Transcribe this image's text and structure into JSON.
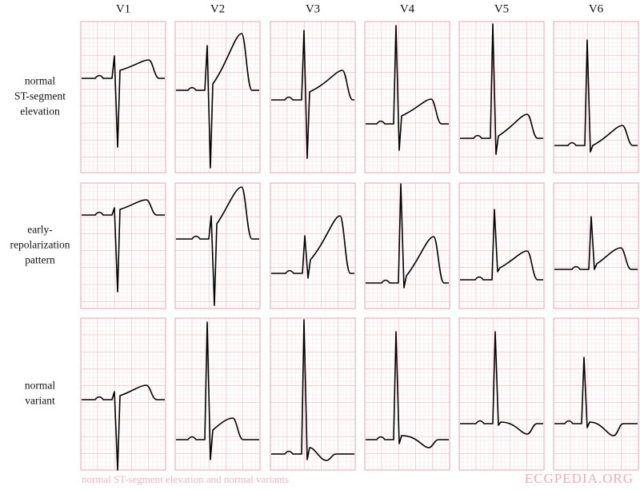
{
  "columns": [
    "V1",
    "V2",
    "V3",
    "V4",
    "V5",
    "V6"
  ],
  "rows": [
    [
      "normal",
      "ST-segment",
      "elevation"
    ],
    [
      "early-",
      "repolarization",
      "pattern"
    ],
    [
      "normal",
      "variant"
    ]
  ],
  "caption": "normal ST-segment elevation and normal variants",
  "watermark": "ECGPEDIA.ORG"
}
